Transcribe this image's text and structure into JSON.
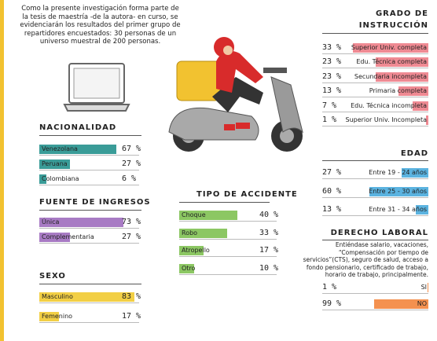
{
  "intro": "Como la presente investigación forma parte de la tesis de maestría -de la autora- en curso, se evidenciarán los resultados del primer grupo de repartidores encuestados: 30 personas de un  universo muestral de 200 personas.",
  "chart_data": [
    {
      "type": "bar",
      "title": "NACIONALIDAD",
      "categories": [
        "Venezolana",
        "Peruana",
        "Colombiana"
      ],
      "values": [
        67,
        27,
        6
      ],
      "value_labels": [
        "67 %",
        "27 %",
        "6 %"
      ],
      "color": "#3a9c98"
    },
    {
      "type": "bar",
      "title": "FUENTE DE INGRESOS",
      "categories": [
        "Única",
        "Complementaria"
      ],
      "values": [
        73,
        27
      ],
      "value_labels": [
        "73 %",
        "27 %"
      ],
      "color": "#a87bc4"
    },
    {
      "type": "bar",
      "title": "SEXO",
      "categories": [
        "Masculino",
        "Femenino"
      ],
      "values": [
        83,
        17
      ],
      "value_labels": [
        "83 %",
        "17 %"
      ],
      "color": "#f2cf45"
    },
    {
      "type": "bar",
      "title": "TIPO DE ACCIDENTE",
      "categories": [
        "Choque",
        "Robo",
        "Atropello",
        "Otro"
      ],
      "values": [
        40,
        33,
        17,
        10
      ],
      "value_labels": [
        "40 %",
        "33 %",
        "17 %",
        "10 %"
      ],
      "color": "#8cc763"
    },
    {
      "type": "bar",
      "title": "GRADO DE INSTRUCCIÓN",
      "categories": [
        "Superior Univ. completa",
        "Edu. Técnica completa",
        "Secundaria incompleta",
        "Primaria completa",
        "Edu. Técnica incompleta",
        "Superior Univ. Incompleta"
      ],
      "values": [
        33,
        23,
        23,
        13,
        7,
        1
      ],
      "value_labels": [
        "33 %",
        "23 %",
        "23 %",
        "13 %",
        "7 %",
        "1 %"
      ],
      "color": "#ef8a93"
    },
    {
      "type": "bar",
      "title": "EDAD",
      "categories": [
        "Entre 19 - 24 años",
        "Entre 25 - 30 años",
        "Entre 31 - 34 años"
      ],
      "values": [
        27,
        60,
        13
      ],
      "value_labels": [
        "27 %",
        "60 %",
        "13 %"
      ],
      "color": "#5bb3e0"
    },
    {
      "type": "bar",
      "title": "DERECHO LABORAL",
      "subtitle": "Entiéndase salario, vacaciones, “Compensación por tiempo de servicios”(CTS), seguro de salud, acceso a fondo pensionario, certificado de trabajo, horario de trabajo, principalmente.",
      "categories": [
        "SI",
        "NO"
      ],
      "values": [
        1,
        99
      ],
      "value_labels": [
        "1 %",
        "99 %"
      ],
      "color": "#f4914f"
    }
  ]
}
